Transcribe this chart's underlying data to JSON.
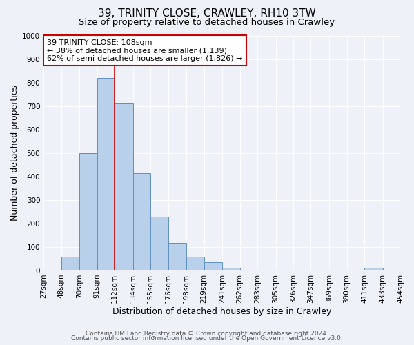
{
  "title": "39, TRINITY CLOSE, CRAWLEY, RH10 3TW",
  "subtitle": "Size of property relative to detached houses in Crawley",
  "xlabel": "Distribution of detached houses by size in Crawley",
  "ylabel": "Number of detached properties",
  "bin_labels": [
    "27sqm",
    "48sqm",
    "70sqm",
    "91sqm",
    "112sqm",
    "134sqm",
    "155sqm",
    "176sqm",
    "198sqm",
    "219sqm",
    "241sqm",
    "262sqm",
    "283sqm",
    "305sqm",
    "326sqm",
    "347sqm",
    "369sqm",
    "390sqm",
    "411sqm",
    "433sqm",
    "454sqm"
  ],
  "bin_edges": [
    27,
    48,
    70,
    91,
    112,
    134,
    155,
    176,
    198,
    219,
    241,
    262,
    283,
    305,
    326,
    347,
    369,
    390,
    411,
    433,
    454
  ],
  "bar_heights": [
    0,
    60,
    500,
    820,
    710,
    415,
    230,
    118,
    58,
    35,
    12,
    0,
    0,
    0,
    0,
    0,
    0,
    0,
    12,
    0,
    0
  ],
  "bar_color": "#b8d0ea",
  "bar_edge_color": "#6090c0",
  "vline_x": 112,
  "vline_color": "#cc0000",
  "annotation_title": "39 TRINITY CLOSE: 108sqm",
  "annotation_line1": "← 38% of detached houses are smaller (1,139)",
  "annotation_line2": "62% of semi-detached houses are larger (1,826) →",
  "annotation_box_color": "#cc0000",
  "ylim": [
    0,
    1000
  ],
  "yticks": [
    0,
    100,
    200,
    300,
    400,
    500,
    600,
    700,
    800,
    900,
    1000
  ],
  "footer_line1": "Contains HM Land Registry data © Crown copyright and database right 2024.",
  "footer_line2": "Contains public sector information licensed under the Open Government Licence v3.0.",
  "bg_color": "#eef2f8",
  "grid_color": "#ffffff",
  "title_fontsize": 11,
  "subtitle_fontsize": 9.5,
  "axis_label_fontsize": 9,
  "tick_fontsize": 7.5,
  "footer_fontsize": 6.5,
  "annotation_fontsize": 8
}
